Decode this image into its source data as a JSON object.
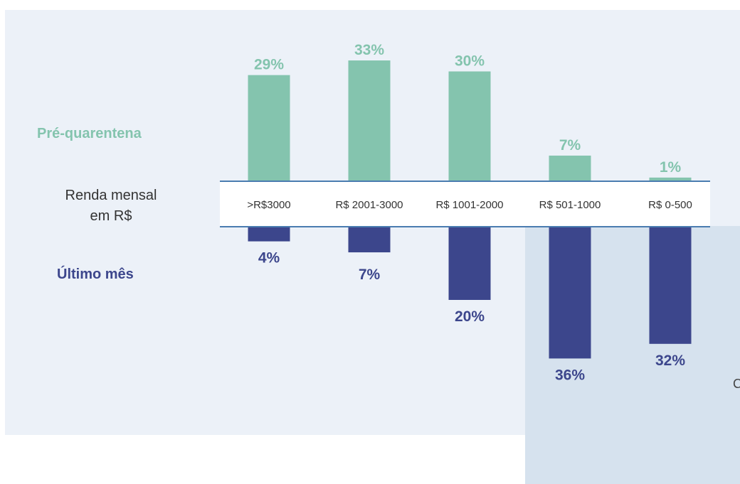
{
  "colors": {
    "pre": "#84c4ae",
    "ultimo": "#3c468c",
    "axis_line": "#4a7cb0",
    "panel": "#ecf1f8",
    "highlight": "#d6e2ee"
  },
  "labels": {
    "pre": "Pré-quarentena",
    "ultimo": "Último mês",
    "axis_line1": "Renda mensal",
    "axis_line2": "em R$",
    "stray": "C"
  },
  "chart_data": {
    "type": "bar",
    "title": "",
    "categories": [
      ">R$3000",
      "R$ 2001-3000",
      "R$ 1001-2000",
      "R$ 501-1000",
      "R$ 0-500"
    ],
    "series": [
      {
        "name": "Pré-quarentena",
        "values": [
          29,
          33,
          30,
          7,
          1
        ],
        "labels": [
          "29%",
          "33%",
          "30%",
          "7%",
          "1%"
        ]
      },
      {
        "name": "Último mês",
        "values": [
          4,
          7,
          20,
          36,
          32
        ],
        "labels": [
          "4%",
          "7%",
          "20%",
          "36%",
          "32%"
        ]
      }
    ],
    "unit": "%",
    "legend": "left",
    "grid": false
  }
}
